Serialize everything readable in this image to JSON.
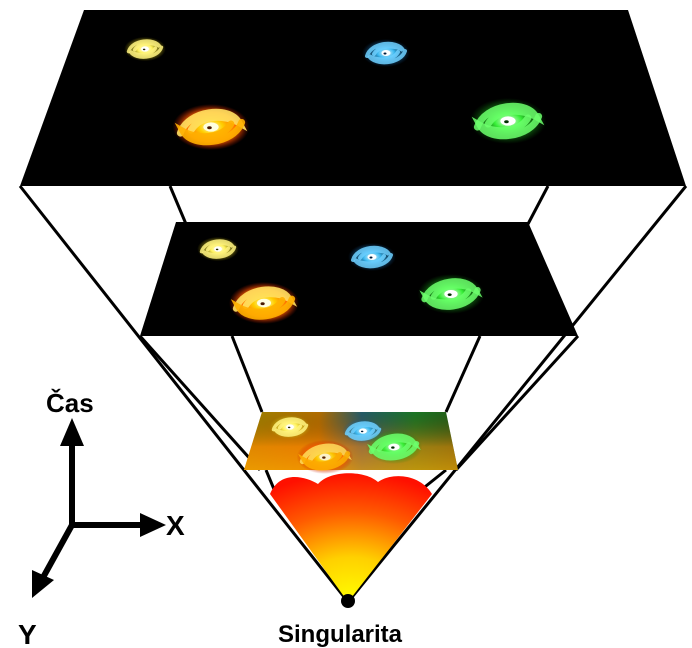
{
  "labels": {
    "time_axis": "Čas",
    "x_axis": "X",
    "y_axis": "Y",
    "singularity": "Singularita"
  },
  "colors": {
    "background": "#ffffff",
    "space_slice": "#000000",
    "galaxy_yellow": "#f2e600",
    "galaxy_blue": "#2aa8e8",
    "galaxy_orange": "#ff8a00",
    "galaxy_green": "#22dd22",
    "fireball_red": "#ff1a00",
    "fireball_yellow": "#ffee00"
  },
  "galaxies": [
    "yellow",
    "blue",
    "orange",
    "green"
  ]
}
